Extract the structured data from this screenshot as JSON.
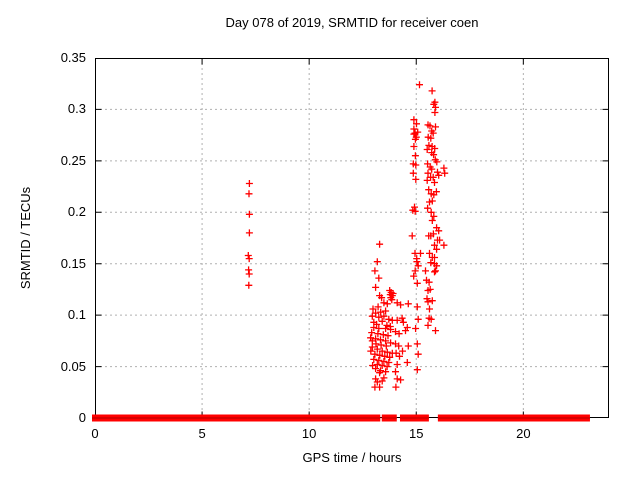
{
  "chart_data": {
    "type": "scatter",
    "title": "Day 078 of 2019, SRMTID for receiver coen",
    "xlabel": "GPS time / hours",
    "ylabel": "SRMTID / TECUs",
    "xlim": [
      0,
      24
    ],
    "ylim": [
      0,
      0.35
    ],
    "x_ticks": [
      0,
      5,
      10,
      15,
      20
    ],
    "y_ticks": [
      0,
      0.05,
      0.1,
      0.15,
      0.2,
      0.25,
      0.3,
      0.35
    ],
    "grid": true,
    "legend": "none",
    "marker": "plus",
    "marker_color": "#ff0000",
    "marker_core_color": "#cc0000",
    "grid_color": "#b0b0b0",
    "axis_color": "#000000",
    "zero_band_segments_hours": [
      [
        0,
        7.12
      ],
      [
        7.27,
        13.18
      ],
      [
        13.53,
        13.95
      ],
      [
        14.38,
        14.93
      ],
      [
        15.13,
        15.45
      ],
      [
        16.15,
        22.97
      ]
    ],
    "points": [
      [
        7.21,
        0.228
      ],
      [
        7.19,
        0.218
      ],
      [
        7.21,
        0.198
      ],
      [
        7.21,
        0.18
      ],
      [
        7.16,
        0.158
      ],
      [
        7.2,
        0.155
      ],
      [
        7.17,
        0.144
      ],
      [
        7.2,
        0.14
      ],
      [
        7.18,
        0.129
      ],
      [
        13.29,
        0.169
      ],
      [
        13.18,
        0.152
      ],
      [
        13.07,
        0.143
      ],
      [
        13.25,
        0.136
      ],
      [
        13.1,
        0.127
      ],
      [
        13.29,
        0.119
      ],
      [
        13.38,
        0.117
      ],
      [
        13.49,
        0.112
      ],
      [
        13.65,
        0.111
      ],
      [
        13.22,
        0.108
      ],
      [
        12.98,
        0.106
      ],
      [
        13.76,
        0.124
      ],
      [
        13.83,
        0.122
      ],
      [
        13.79,
        0.12
      ],
      [
        13.88,
        0.119
      ],
      [
        13.81,
        0.117
      ],
      [
        13.86,
        0.115
      ],
      [
        13.92,
        0.121
      ],
      [
        12.95,
        0.099
      ],
      [
        13.1,
        0.102
      ],
      [
        13.25,
        0.098
      ],
      [
        13.49,
        0.099
      ],
      [
        13.72,
        0.096
      ],
      [
        13.88,
        0.095
      ],
      [
        13.57,
        0.104
      ],
      [
        13.34,
        0.103
      ],
      [
        13.02,
        0.093
      ],
      [
        13.15,
        0.091
      ],
      [
        13.41,
        0.094
      ],
      [
        13.63,
        0.09
      ],
      [
        13.79,
        0.089
      ],
      [
        13.02,
        0.088
      ],
      [
        12.87,
        0.078
      ],
      [
        13.25,
        0.087
      ],
      [
        13.57,
        0.087
      ],
      [
        13.8,
        0.086
      ],
      [
        12.92,
        0.083
      ],
      [
        13.1,
        0.077
      ],
      [
        13.33,
        0.076
      ],
      [
        13.57,
        0.075
      ],
      [
        13.8,
        0.073
      ],
      [
        13.46,
        0.081
      ],
      [
        13.68,
        0.08
      ],
      [
        13.21,
        0.082
      ],
      [
        12.95,
        0.075
      ],
      [
        12.95,
        0.069
      ],
      [
        13.18,
        0.067
      ],
      [
        13.41,
        0.065
      ],
      [
        13.65,
        0.064
      ],
      [
        13.88,
        0.063
      ],
      [
        13.07,
        0.062
      ],
      [
        13.3,
        0.061
      ],
      [
        13.53,
        0.06
      ],
      [
        13.76,
        0.059
      ],
      [
        13.12,
        0.072
      ],
      [
        13.36,
        0.071
      ],
      [
        13.6,
        0.07
      ],
      [
        12.88,
        0.065
      ],
      [
        13.02,
        0.057
      ],
      [
        13.25,
        0.056
      ],
      [
        13.49,
        0.055
      ],
      [
        13.72,
        0.054
      ],
      [
        13.1,
        0.048
      ],
      [
        13.33,
        0.046
      ],
      [
        13.57,
        0.045
      ],
      [
        13.18,
        0.052
      ],
      [
        13.41,
        0.051
      ],
      [
        13.64,
        0.05
      ],
      [
        12.96,
        0.051
      ],
      [
        13.29,
        0.044
      ],
      [
        13.49,
        0.039
      ],
      [
        13.1,
        0.038
      ],
      [
        13.18,
        0.035
      ],
      [
        13.29,
        0.03
      ],
      [
        13.07,
        0.03
      ],
      [
        13.41,
        0.036
      ],
      [
        14.11,
        0.112
      ],
      [
        14.27,
        0.11
      ],
      [
        14.34,
        0.097
      ],
      [
        14.11,
        0.095
      ],
      [
        14.03,
        0.084
      ],
      [
        14.2,
        0.082
      ],
      [
        14.03,
        0.072
      ],
      [
        14.18,
        0.07
      ],
      [
        14.06,
        0.063
      ],
      [
        14.22,
        0.06
      ],
      [
        14.11,
        0.052
      ],
      [
        14.03,
        0.045
      ],
      [
        14.11,
        0.038
      ],
      [
        14.27,
        0.037
      ],
      [
        14.05,
        0.03
      ],
      [
        14.4,
        0.093
      ],
      [
        14.36,
        0.065
      ],
      [
        14.63,
        0.111
      ],
      [
        14.58,
        0.088
      ],
      [
        14.5,
        0.085
      ],
      [
        14.63,
        0.07
      ],
      [
        14.58,
        0.054
      ],
      [
        15.15,
        0.324
      ],
      [
        14.89,
        0.29
      ],
      [
        15.01,
        0.286
      ],
      [
        14.89,
        0.281
      ],
      [
        15.07,
        0.278
      ],
      [
        14.89,
        0.276
      ],
      [
        15.0,
        0.273
      ],
      [
        14.94,
        0.277
      ],
      [
        14.96,
        0.271
      ],
      [
        14.89,
        0.264
      ],
      [
        14.96,
        0.255
      ],
      [
        14.86,
        0.247
      ],
      [
        14.98,
        0.246
      ],
      [
        14.86,
        0.238
      ],
      [
        14.98,
        0.232
      ],
      [
        14.92,
        0.205
      ],
      [
        14.84,
        0.202
      ],
      [
        14.95,
        0.201
      ],
      [
        14.81,
        0.177
      ],
      [
        15.2,
        0.16
      ],
      [
        14.94,
        0.16
      ],
      [
        15.03,
        0.152
      ],
      [
        14.95,
        0.143
      ],
      [
        14.88,
        0.138
      ],
      [
        15.02,
        0.155
      ],
      [
        15.09,
        0.148
      ],
      [
        15.05,
        0.131
      ],
      [
        15.05,
        0.108
      ],
      [
        15.09,
        0.096
      ],
      [
        14.97,
        0.087
      ],
      [
        15.05,
        0.072
      ],
      [
        15.09,
        0.062
      ],
      [
        15.05,
        0.047
      ],
      [
        15.74,
        0.318
      ],
      [
        15.87,
        0.307
      ],
      [
        15.82,
        0.305
      ],
      [
        15.9,
        0.302
      ],
      [
        15.87,
        0.297
      ],
      [
        15.9,
        0.283
      ],
      [
        15.55,
        0.285
      ],
      [
        15.64,
        0.284
      ],
      [
        15.72,
        0.279
      ],
      [
        15.79,
        0.277
      ],
      [
        15.56,
        0.273
      ],
      [
        15.68,
        0.272
      ],
      [
        15.59,
        0.265
      ],
      [
        15.74,
        0.264
      ],
      [
        15.86,
        0.262
      ],
      [
        15.51,
        0.261
      ],
      [
        15.72,
        0.258
      ],
      [
        15.81,
        0.256
      ],
      [
        15.89,
        0.251
      ],
      [
        15.96,
        0.249
      ],
      [
        15.53,
        0.247
      ],
      [
        15.65,
        0.244
      ],
      [
        16.29,
        0.243
      ],
      [
        16.33,
        0.238
      ],
      [
        15.72,
        0.242
      ],
      [
        15.55,
        0.238
      ],
      [
        15.67,
        0.234
      ],
      [
        15.79,
        0.234
      ],
      [
        15.99,
        0.239
      ],
      [
        16.05,
        0.236
      ],
      [
        15.51,
        0.231
      ],
      [
        15.85,
        0.229
      ],
      [
        15.58,
        0.222
      ],
      [
        15.7,
        0.218
      ],
      [
        15.82,
        0.217
      ],
      [
        15.94,
        0.22
      ],
      [
        15.62,
        0.21
      ],
      [
        15.75,
        0.211
      ],
      [
        15.53,
        0.204
      ],
      [
        15.7,
        0.2
      ],
      [
        15.82,
        0.196
      ],
      [
        15.75,
        0.192
      ],
      [
        15.95,
        0.185
      ],
      [
        16.05,
        0.182
      ],
      [
        15.58,
        0.177
      ],
      [
        15.68,
        0.177
      ],
      [
        15.8,
        0.179
      ],
      [
        15.99,
        0.173
      ],
      [
        16.09,
        0.173
      ],
      [
        16.29,
        0.168
      ],
      [
        15.85,
        0.168
      ],
      [
        15.95,
        0.164
      ],
      [
        15.62,
        0.16
      ],
      [
        15.75,
        0.156
      ],
      [
        15.85,
        0.156
      ],
      [
        15.68,
        0.151
      ],
      [
        15.85,
        0.15
      ],
      [
        15.95,
        0.148
      ],
      [
        15.48,
        0.134
      ],
      [
        15.6,
        0.132
      ],
      [
        15.43,
        0.143
      ],
      [
        15.9,
        0.143
      ],
      [
        15.85,
        0.142
      ],
      [
        15.55,
        0.124
      ],
      [
        15.65,
        0.125
      ],
      [
        15.75,
        0.114
      ],
      [
        15.5,
        0.116
      ],
      [
        15.55,
        0.113
      ],
      [
        15.62,
        0.106
      ],
      [
        15.6,
        0.097
      ],
      [
        15.7,
        0.096
      ],
      [
        15.55,
        0.09
      ],
      [
        15.9,
        0.085
      ]
    ]
  }
}
